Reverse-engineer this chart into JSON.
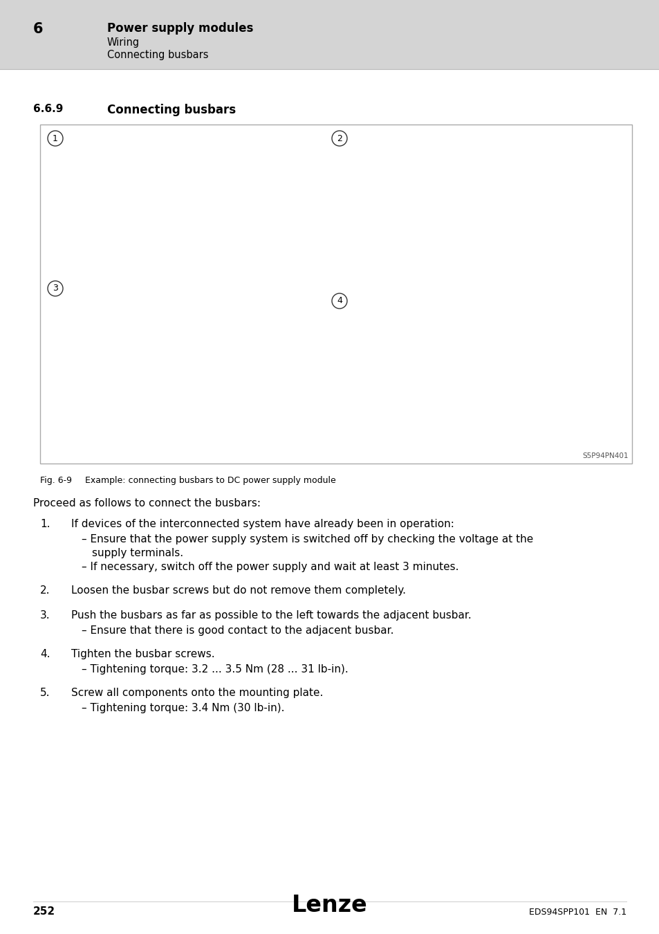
{
  "page_bg": "#ffffff",
  "header_bg": "#d4d4d4",
  "header_number": "6",
  "header_title": "Power supply modules",
  "header_sub1": "Wiring",
  "header_sub2": "Connecting busbars",
  "section_number": "6.6.9",
  "section_title": "Connecting busbars",
  "fig_caption_label": "Fig. 6-9",
  "fig_caption_text": "Example: connecting busbars to DC power supply module",
  "fig_ref": "S5P94PN401",
  "intro_text": "Proceed as follows to connect the busbars:",
  "steps": [
    {
      "num": "1.",
      "text": "If devices of the interconnected system have already been in operation:",
      "sub": [
        [
          "– Ensure that the power supply system is switched off by checking the voltage at the",
          "supply terminals."
        ],
        [
          "– If necessary, switch off the power supply and wait at least 3 minutes."
        ]
      ]
    },
    {
      "num": "2.",
      "text": "Loosen the busbar screws but do not remove them completely.",
      "sub": []
    },
    {
      "num": "3.",
      "text": "Push the busbars as far as possible to the left towards the adjacent busbar.",
      "sub": [
        [
          "– Ensure that there is good contact to the adjacent busbar."
        ]
      ]
    },
    {
      "num": "4.",
      "text": "Tighten the busbar screws.",
      "sub": [
        [
          "– Tightening torque: 3.2 ... 3.5 Nm (28 ... 31 lb-in)."
        ]
      ]
    },
    {
      "num": "5.",
      "text": "Screw all components onto the mounting plate.",
      "sub": [
        [
          "– Tightening torque: 3.4 Nm (30 lb-in)."
        ]
      ]
    }
  ],
  "footer_page": "252",
  "footer_logo": "Lenze",
  "footer_doc": "EDS94SPP101  EN  7.1",
  "image_border_color": "#aaaaaa",
  "image_bg": "#ffffff"
}
